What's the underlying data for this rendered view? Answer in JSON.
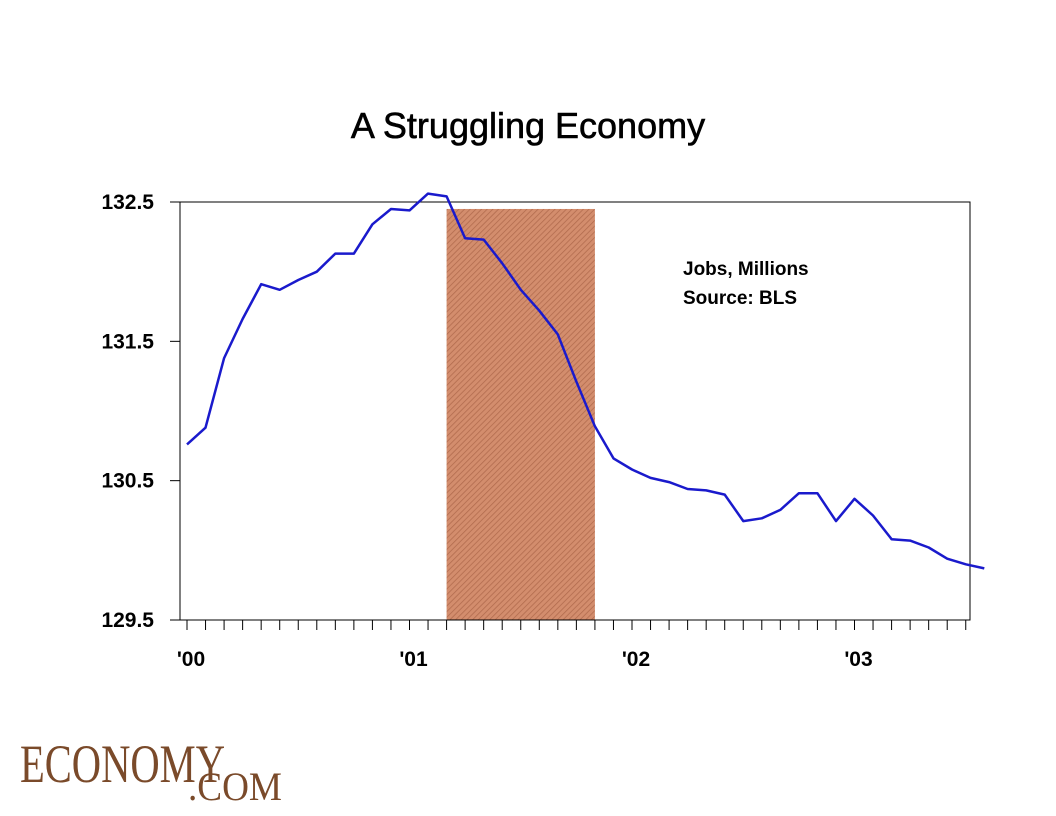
{
  "chart_data": {
    "type": "line",
    "title": "A Struggling Economy",
    "xlabel": "",
    "ylabel": "",
    "annotation_lines": [
      "Jobs, Millions",
      "Source: BLS"
    ],
    "x_ticks": [
      "'00",
      "'01",
      "'02",
      "'03"
    ],
    "y_ticks": [
      "132.5",
      "131.5",
      "130.5",
      "129.5"
    ],
    "ylim": [
      129.5,
      132.5
    ],
    "shaded_region": {
      "start": "2001-03",
      "end": "2001-11",
      "top": 132.45,
      "color": "#c87b57"
    },
    "series": [
      {
        "color": "#1a1acc",
        "x": [
          "2000-01",
          "2000-02",
          "2000-03",
          "2000-04",
          "2000-05",
          "2000-06",
          "2000-07",
          "2000-08",
          "2000-09",
          "2000-10",
          "2000-11",
          "2000-12",
          "2001-01",
          "2001-02",
          "2001-03",
          "2001-04",
          "2001-05",
          "2001-06",
          "2001-07",
          "2001-08",
          "2001-09",
          "2001-10",
          "2001-11",
          "2001-12",
          "2002-01",
          "2002-02",
          "2002-03",
          "2002-04",
          "2002-05",
          "2002-06",
          "2002-07",
          "2002-08",
          "2002-09",
          "2002-10",
          "2002-11",
          "2002-12",
          "2003-01",
          "2003-02",
          "2003-03",
          "2003-04",
          "2003-05",
          "2003-06",
          "2003-07",
          "2003-08"
        ],
        "values": [
          130.76,
          130.88,
          131.38,
          131.66,
          131.91,
          131.87,
          131.94,
          132.0,
          132.13,
          132.13,
          132.34,
          132.45,
          132.44,
          132.56,
          132.54,
          132.24,
          132.23,
          132.06,
          131.87,
          131.72,
          131.55,
          131.21,
          130.89,
          130.66,
          130.58,
          130.52,
          130.49,
          130.44,
          130.43,
          130.4,
          130.21,
          130.23,
          130.29,
          130.41,
          130.41,
          130.21,
          130.37,
          130.25,
          130.08,
          130.07,
          130.02,
          129.94,
          129.9,
          129.87
        ]
      }
    ]
  },
  "logo": {
    "main": "ECONOMY",
    "sub": ".COM"
  }
}
